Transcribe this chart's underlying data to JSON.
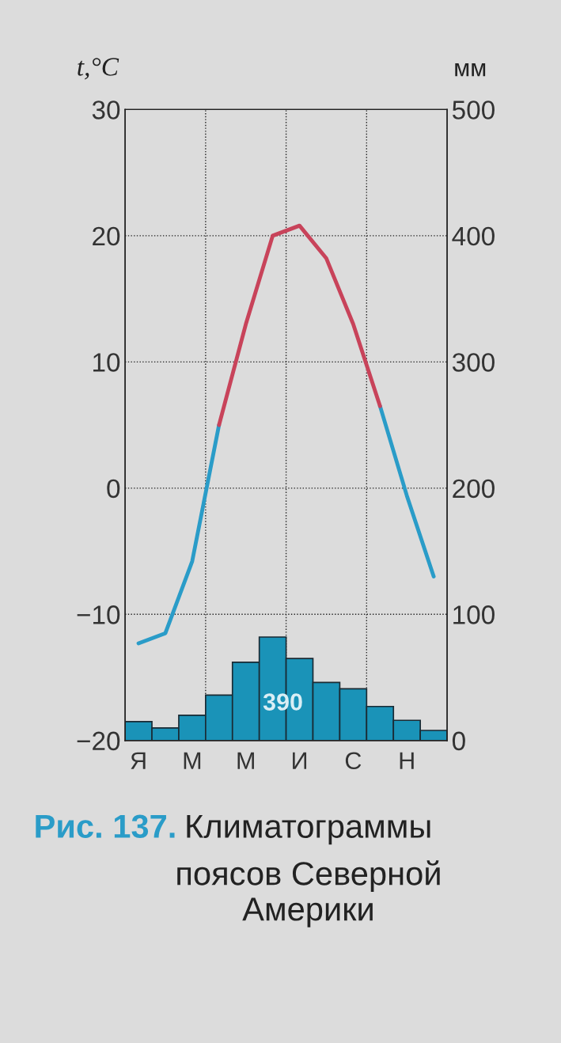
{
  "chart_data": {
    "type": "line",
    "ylabel": "t,°C",
    "y2label": "мм",
    "categories": [
      "Я",
      null,
      "М",
      null,
      "М",
      null,
      "И",
      null,
      "С",
      null,
      "Н",
      null
    ],
    "ylim": [
      -20,
      30
    ],
    "yticks": [
      -20,
      -10,
      0,
      10,
      20,
      30
    ],
    "y2lim": [
      0,
      500
    ],
    "y2ticks": [
      0,
      100,
      200,
      300,
      400,
      500
    ],
    "grid": true,
    "legend": false,
    "marker": "none",
    "line_style": "solid",
    "series": [
      {
        "type": "bar",
        "axis": "y2",
        "color": "#1a93b8",
        "values": [
          15,
          10,
          20,
          36,
          62,
          82,
          65,
          46,
          41,
          27,
          16,
          8
        ]
      },
      {
        "color": "#2a9cc8",
        "values": [
          -12.3,
          -11.5,
          -5.8,
          5,
          null,
          null,
          null,
          null,
          null,
          6.5,
          -0.6,
          -7
        ]
      },
      {
        "color": "#c8435a",
        "values": [
          null,
          null,
          null,
          5,
          13,
          20,
          20.8,
          18.2,
          13,
          6.5,
          null,
          null
        ]
      }
    ],
    "annotations": [
      "390",
      "Рис. 137.",
      "Климатограммы поясов Северной Америки"
    ]
  }
}
